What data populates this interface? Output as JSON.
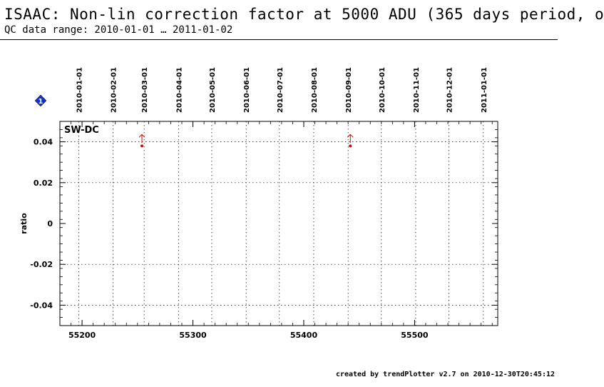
{
  "header": {
    "title": "ISAAC: Non-lin correction factor at 5000 ADU (365 days period, o",
    "subtitle": "QC data range: 2010-01-01 … 2011-01-02"
  },
  "footer": {
    "credit": "created by trendPlotter v2.7 on 2010-12-30T20:45:12"
  },
  "colors": {
    "marker": "#dd0000",
    "badge": "#1030d0",
    "axis": "#000000"
  },
  "badge_label": "1",
  "chart_data": {
    "type": "scatter",
    "panel_label": "SW-DC",
    "ylabel": "ratio",
    "xlim": [
      55180,
      55575
    ],
    "ylim": [
      -0.05,
      0.05
    ],
    "x_ticks": [
      55200,
      55300,
      55400,
      55500
    ],
    "y_ticks": [
      -0.04,
      -0.02,
      0,
      0.02,
      0.04
    ],
    "grid": "dotted",
    "date_ticks": [
      {
        "mjd": 55197,
        "label": "2010-01-01"
      },
      {
        "mjd": 55228,
        "label": "2010-02-01"
      },
      {
        "mjd": 55256,
        "label": "2010-03-01"
      },
      {
        "mjd": 55287,
        "label": "2010-04-01"
      },
      {
        "mjd": 55317,
        "label": "2010-05-01"
      },
      {
        "mjd": 55348,
        "label": "2010-06-01"
      },
      {
        "mjd": 55378,
        "label": "2010-07-01"
      },
      {
        "mjd": 55409,
        "label": "2010-08-01"
      },
      {
        "mjd": 55440,
        "label": "2010-09-01"
      },
      {
        "mjd": 55470,
        "label": "2010-10-01"
      },
      {
        "mjd": 55501,
        "label": "2010-11-01"
      },
      {
        "mjd": 55531,
        "label": "2010-12-01"
      },
      {
        "mjd": 55562,
        "label": "2011-01-01"
      }
    ],
    "series": [
      {
        "points": [
          {
            "x": 55254,
            "y": 0.038,
            "out_of_range": "up"
          },
          {
            "x": 55442,
            "y": 0.038,
            "out_of_range": "up"
          }
        ]
      }
    ]
  }
}
